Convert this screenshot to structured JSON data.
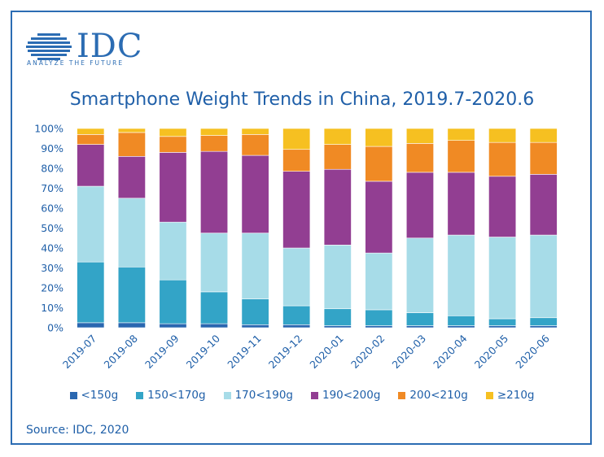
{
  "logo": {
    "word": "IDC",
    "tagline": "ANALYZE THE FUTURE"
  },
  "source": "Source: IDC, 2020",
  "colors": {
    "frame": "#2b6cb3",
    "text": "#1f5fa8"
  },
  "chart_data": {
    "type": "bar",
    "stacked": true,
    "title": "Smartphone Weight Trends in China, 2019.7-2020.6",
    "xlabel": "",
    "ylabel": "",
    "ylim": [
      0,
      100
    ],
    "y_ticks": [
      "0%",
      "10%",
      "20%",
      "30%",
      "40%",
      "50%",
      "60%",
      "70%",
      "80%",
      "90%",
      "100%"
    ],
    "legend_position": "bottom",
    "categories": [
      "2019-07",
      "2019-08",
      "2019-09",
      "2019-10",
      "2019-11",
      "2019-12",
      "2020-01",
      "2020-02",
      "2020-03",
      "2020-04",
      "2020-05",
      "2020-06"
    ],
    "series": [
      {
        "name": "<150g",
        "color": "#2a67b0",
        "values": [
          2.5,
          2.5,
          2,
          2,
          1.5,
          1.5,
          1,
          1,
          1,
          1,
          1,
          1
        ]
      },
      {
        "name": "150<170g",
        "color": "#33a4c7",
        "values": [
          30.5,
          28,
          22,
          16,
          13,
          9.5,
          8.5,
          8,
          6.5,
          5,
          3.5,
          4
        ]
      },
      {
        "name": "170<190g",
        "color": "#a7dce8",
        "values": [
          38,
          34.5,
          29,
          29.5,
          33,
          29,
          32,
          28.5,
          37.5,
          40.5,
          41,
          41.5
        ]
      },
      {
        "name": "190<200g",
        "color": "#923e92",
        "values": [
          21,
          21,
          35,
          41,
          39,
          38.5,
          38,
          36,
          33,
          31.5,
          30.5,
          30.5
        ]
      },
      {
        "name": "200<210g",
        "color": "#f08a24",
        "values": [
          5,
          12,
          8,
          8,
          10.5,
          11,
          12.5,
          17.5,
          14.5,
          16,
          17,
          16
        ]
      },
      {
        "name": "≥210g",
        "color": "#f6c021",
        "values": [
          3,
          2,
          4,
          3.5,
          3,
          10.5,
          8,
          9,
          7.5,
          6,
          7,
          7
        ]
      }
    ]
  }
}
